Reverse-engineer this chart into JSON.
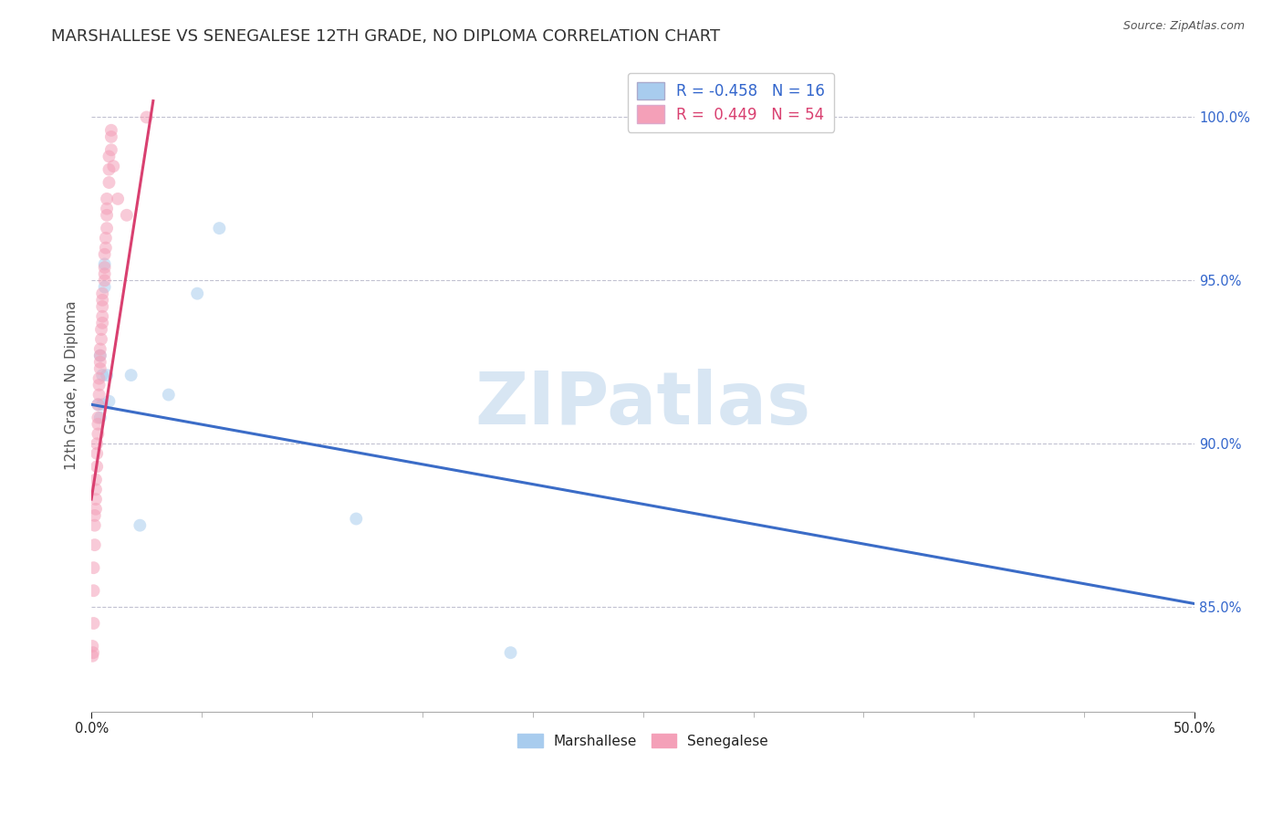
{
  "title": "MARSHALLESE VS SENEGALESE 12TH GRADE, NO DIPLOMA CORRELATION CHART",
  "source": "Source: ZipAtlas.com",
  "ylabel": "12th Grade, No Diploma",
  "xlim": [
    0.0,
    0.5
  ],
  "ylim": [
    0.818,
    1.018
  ],
  "blue_R": -0.458,
  "blue_N": 16,
  "pink_R": 0.449,
  "pink_N": 54,
  "blue_color": "#A8CCEE",
  "pink_color": "#F4A0B8",
  "blue_line_color": "#3B6CC7",
  "pink_line_color": "#D94070",
  "background_color": "#ffffff",
  "grid_color": "#BBBBCC",
  "watermark": "ZIPatlas",
  "marshallese_x": [
    0.003,
    0.004,
    0.004,
    0.005,
    0.005,
    0.006,
    0.006,
    0.007,
    0.008,
    0.018,
    0.022,
    0.035,
    0.048,
    0.058,
    0.12,
    0.19
  ],
  "marshallese_y": [
    0.912,
    0.908,
    0.927,
    0.921,
    0.912,
    0.948,
    0.955,
    0.921,
    0.913,
    0.921,
    0.875,
    0.915,
    0.946,
    0.966,
    0.877,
    0.836
  ],
  "senegalese_x": [
    0.0005,
    0.0005,
    0.0008,
    0.001,
    0.001,
    0.001,
    0.0015,
    0.0015,
    0.0015,
    0.002,
    0.002,
    0.002,
    0.002,
    0.0025,
    0.0025,
    0.0025,
    0.003,
    0.003,
    0.003,
    0.003,
    0.0035,
    0.0035,
    0.0035,
    0.004,
    0.004,
    0.004,
    0.004,
    0.0045,
    0.0045,
    0.005,
    0.005,
    0.005,
    0.005,
    0.005,
    0.006,
    0.006,
    0.006,
    0.006,
    0.0065,
    0.0065,
    0.007,
    0.007,
    0.007,
    0.007,
    0.008,
    0.008,
    0.008,
    0.009,
    0.009,
    0.009,
    0.01,
    0.012,
    0.016,
    0.025
  ],
  "senegalese_y": [
    0.838,
    0.835,
    0.836,
    0.862,
    0.855,
    0.845,
    0.869,
    0.875,
    0.878,
    0.88,
    0.883,
    0.886,
    0.889,
    0.893,
    0.897,
    0.9,
    0.903,
    0.906,
    0.908,
    0.912,
    0.915,
    0.918,
    0.92,
    0.923,
    0.925,
    0.927,
    0.929,
    0.932,
    0.935,
    0.937,
    0.939,
    0.942,
    0.944,
    0.946,
    0.95,
    0.952,
    0.954,
    0.958,
    0.96,
    0.963,
    0.966,
    0.97,
    0.972,
    0.975,
    0.98,
    0.984,
    0.988,
    0.99,
    0.994,
    0.996,
    0.985,
    0.975,
    0.97,
    1.0
  ],
  "blue_trendline_x": [
    0.0,
    0.5
  ],
  "blue_trendline_y": [
    0.912,
    0.851
  ],
  "pink_trendline_x": [
    0.0,
    0.028
  ],
  "pink_trendline_y": [
    0.883,
    1.005
  ],
  "title_fontsize": 13,
  "axis_label_fontsize": 11,
  "tick_fontsize": 10.5,
  "marker_size": 100,
  "marker_alpha": 0.55
}
